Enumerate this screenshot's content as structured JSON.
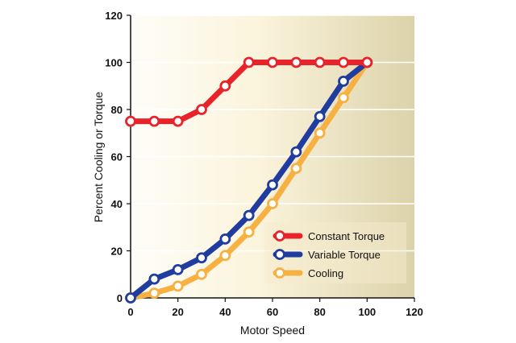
{
  "chart_data": {
    "type": "line",
    "title": "",
    "xlabel": "Motor Speed",
    "ylabel": "Percent Cooling or Torque",
    "xlim": [
      0,
      120
    ],
    "ylim": [
      0,
      120
    ],
    "xticks": [
      "0",
      "20",
      "40",
      "60",
      "80",
      "100",
      "120"
    ],
    "yticks": [
      "0",
      "20",
      "40",
      "60",
      "80",
      "100",
      "120"
    ],
    "grid": "horizontal",
    "background": "gradient white to tan",
    "legend_position": "bottom-right",
    "series": [
      {
        "name": "Constant Torque",
        "color": "#e8232a",
        "x": [
          0,
          10,
          20,
          30,
          40,
          50,
          60,
          70,
          80,
          90,
          100
        ],
        "y": [
          75,
          75,
          75,
          80,
          90,
          100,
          100,
          100,
          100,
          100,
          100
        ]
      },
      {
        "name": "Variable Torque",
        "color": "#1f3c9e",
        "x": [
          0,
          10,
          20,
          30,
          40,
          50,
          60,
          70,
          80,
          90,
          100
        ],
        "y": [
          0,
          8,
          12,
          17,
          25,
          35,
          48,
          62,
          77,
          92,
          100
        ]
      },
      {
        "name": "Cooling",
        "color": "#f7b143",
        "x": [
          0,
          10,
          20,
          30,
          40,
          50,
          60,
          70,
          80,
          90,
          100
        ],
        "y": [
          0,
          2,
          5,
          10,
          18,
          28,
          40,
          55,
          70,
          85,
          100
        ]
      }
    ]
  }
}
